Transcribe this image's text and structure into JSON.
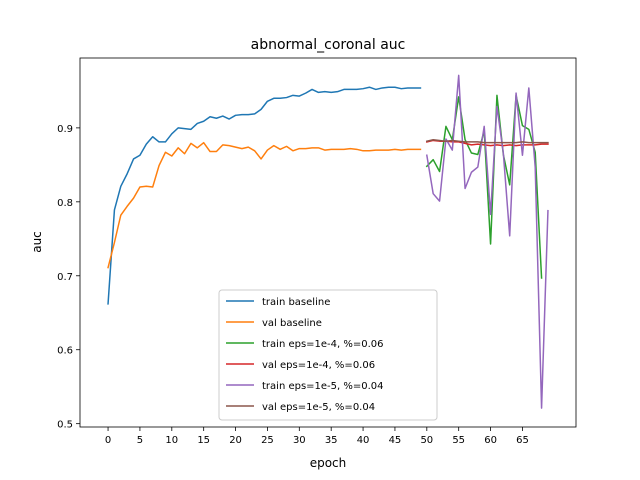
{
  "chart_data": {
    "type": "line",
    "title": "abnormal_coronal auc",
    "xlabel": "epoch",
    "ylabel": "auc",
    "xlim": [
      -4.4,
      73.4
    ],
    "ylim": [
      0.4955,
      0.9945
    ],
    "xticks": [
      0,
      5,
      10,
      15,
      20,
      25,
      30,
      35,
      40,
      45,
      50,
      55,
      60,
      65
    ],
    "yticks": [
      0.5,
      0.6,
      0.7,
      0.8,
      0.9
    ],
    "ytick_labels": [
      "0.5",
      "0.6",
      "0.7",
      "0.8",
      "0.9"
    ],
    "grid": false,
    "legend_position": "lower-center",
    "series": [
      {
        "name": "train baseline",
        "color": "#1f77b4",
        "x": [
          0,
          1,
          2,
          3,
          4,
          5,
          6,
          7,
          8,
          9,
          10,
          11,
          12,
          13,
          14,
          15,
          16,
          17,
          18,
          19,
          20,
          21,
          22,
          23,
          24,
          25,
          26,
          27,
          28,
          29,
          30,
          31,
          32,
          33,
          34,
          35,
          36,
          37,
          38,
          39,
          40,
          41,
          42,
          43,
          44,
          45,
          46,
          47,
          48,
          49
        ],
        "y": [
          0.662,
          0.789,
          0.821,
          0.838,
          0.858,
          0.863,
          0.878,
          0.888,
          0.881,
          0.881,
          0.892,
          0.9,
          0.899,
          0.898,
          0.906,
          0.909,
          0.915,
          0.913,
          0.916,
          0.912,
          0.917,
          0.918,
          0.918,
          0.919,
          0.925,
          0.936,
          0.94,
          0.94,
          0.941,
          0.944,
          0.943,
          0.947,
          0.952,
          0.948,
          0.949,
          0.948,
          0.949,
          0.952,
          0.952,
          0.952,
          0.953,
          0.955,
          0.952,
          0.954,
          0.955,
          0.955,
          0.953,
          0.954,
          0.954,
          0.954
        ]
      },
      {
        "name": "val baseline",
        "color": "#ff7f0e",
        "x": [
          0,
          1,
          2,
          3,
          4,
          5,
          6,
          7,
          8,
          9,
          10,
          11,
          12,
          13,
          14,
          15,
          16,
          17,
          18,
          19,
          20,
          21,
          22,
          23,
          24,
          25,
          26,
          27,
          28,
          29,
          30,
          31,
          32,
          33,
          34,
          35,
          36,
          37,
          38,
          39,
          40,
          41,
          42,
          43,
          44,
          45,
          46,
          47,
          48,
          49
        ],
        "y": [
          0.711,
          0.745,
          0.782,
          0.794,
          0.805,
          0.82,
          0.821,
          0.82,
          0.849,
          0.867,
          0.862,
          0.873,
          0.865,
          0.879,
          0.873,
          0.88,
          0.868,
          0.868,
          0.877,
          0.876,
          0.874,
          0.872,
          0.874,
          0.869,
          0.858,
          0.87,
          0.876,
          0.871,
          0.875,
          0.869,
          0.872,
          0.872,
          0.873,
          0.873,
          0.87,
          0.871,
          0.871,
          0.871,
          0.872,
          0.871,
          0.869,
          0.869,
          0.87,
          0.87,
          0.87,
          0.871,
          0.87,
          0.871,
          0.871,
          0.871
        ]
      },
      {
        "name": "train eps=1e-4, %=0.06",
        "color": "#2ca02c",
        "x": [
          50,
          51,
          52,
          53,
          54,
          55,
          56,
          57,
          58,
          59,
          60,
          61,
          62,
          63,
          64,
          65,
          66,
          67,
          68
        ],
        "y": [
          0.848,
          0.857,
          0.841,
          0.902,
          0.884,
          0.942,
          0.884,
          0.866,
          0.864,
          0.896,
          0.743,
          0.944,
          0.864,
          0.823,
          0.944,
          0.903,
          0.898,
          0.867,
          0.697
        ]
      },
      {
        "name": "val eps=1e-4, %=0.06",
        "color": "#d62728",
        "x": [
          50,
          51,
          52,
          53,
          54,
          55,
          56,
          57,
          58,
          59,
          60,
          61,
          62,
          63,
          64,
          65,
          66,
          67,
          68,
          69
        ],
        "y": [
          0.881,
          0.883,
          0.882,
          0.882,
          0.881,
          0.881,
          0.879,
          0.877,
          0.878,
          0.877,
          0.876,
          0.877,
          0.876,
          0.877,
          0.876,
          0.877,
          0.877,
          0.877,
          0.878,
          0.878
        ]
      },
      {
        "name": "train eps=1e-5, %=0.04",
        "color": "#9467bd",
        "x": [
          50,
          51,
          52,
          53,
          54,
          55,
          56,
          57,
          58,
          59,
          60,
          61,
          62,
          63,
          64,
          65,
          66,
          67,
          68,
          69
        ],
        "y": [
          0.863,
          0.811,
          0.801,
          0.885,
          0.87,
          0.971,
          0.818,
          0.84,
          0.847,
          0.902,
          0.783,
          0.929,
          0.866,
          0.754,
          0.947,
          0.863,
          0.954,
          0.847,
          0.521,
          0.788
        ]
      },
      {
        "name": "val eps=1e-5, %=0.04",
        "color": "#8c564b",
        "x": [
          50,
          51,
          52,
          53,
          54,
          55,
          56,
          57,
          58,
          59,
          60,
          61,
          62,
          63,
          64,
          65,
          66,
          67,
          68,
          69
        ],
        "y": [
          0.882,
          0.884,
          0.883,
          0.882,
          0.883,
          0.882,
          0.881,
          0.881,
          0.881,
          0.88,
          0.88,
          0.88,
          0.88,
          0.88,
          0.88,
          0.881,
          0.88,
          0.88,
          0.88,
          0.88
        ]
      }
    ]
  }
}
